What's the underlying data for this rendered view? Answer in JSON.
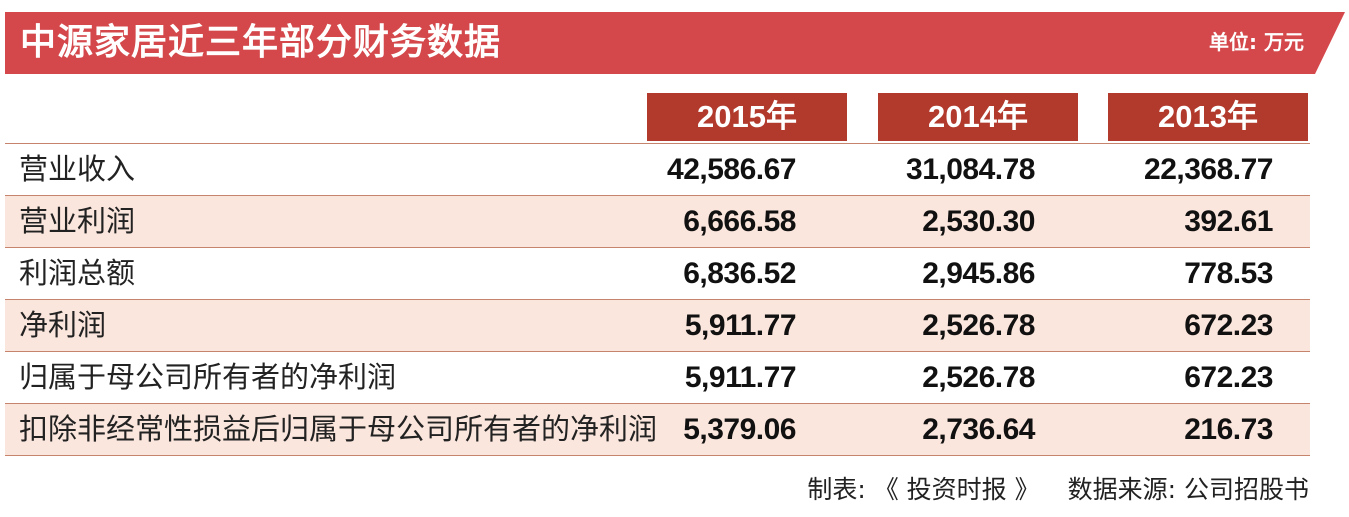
{
  "chart_data": {
    "type": "table",
    "title": "中源家居近三年部分财务数据",
    "unit": "单位: 万元",
    "columns": [
      "2015年",
      "2014年",
      "2013年"
    ],
    "rows": [
      {
        "label": "营业收入",
        "values": [
          "42,586.67",
          "31,084.78",
          "22,368.77"
        ]
      },
      {
        "label": "营业利润",
        "values": [
          "6,666.58",
          "2,530.30",
          "392.61"
        ]
      },
      {
        "label": "利润总额",
        "values": [
          "6,836.52",
          "2,945.86",
          "778.53"
        ]
      },
      {
        "label": "净利润",
        "values": [
          "5,911.77",
          "2,526.78",
          "672.23"
        ]
      },
      {
        "label": "归属于母公司所有者的净利润",
        "values": [
          "5,911.77",
          "2,526.78",
          "672.23"
        ]
      },
      {
        "label": "扣除非经常性损益后归属于母公司所有者的净利润",
        "values": [
          "5,379.06",
          "2,736.64",
          "216.73"
        ]
      }
    ],
    "footer": {
      "made_by": "制表: 《 投资时报 》",
      "source": "数据来源: 公司招股书"
    }
  },
  "colors": {
    "banner": "#d4484b",
    "header_cell": "#b23a2c",
    "alt_row": "#fbe6dd",
    "rule": "#c7846d"
  }
}
